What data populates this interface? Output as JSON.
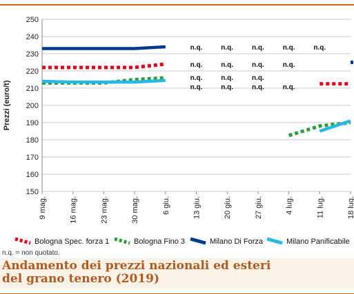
{
  "chart_data": {
    "type": "line",
    "ylabel": "Prezzi (euro/t)",
    "ylim": [
      150,
      250
    ],
    "yticks": [
      150,
      160,
      170,
      180,
      190,
      200,
      210,
      220,
      230,
      240,
      250
    ],
    "categories": [
      "9 mag.",
      "16 mag.",
      "23 mag.",
      "30 mag.",
      "6 giu.",
      "13 giu.",
      "20 giu.",
      "27 giu.",
      "4 lug.",
      "11 lug.",
      "18 lug."
    ],
    "grid": "horizontal",
    "legend_position": "bottom",
    "series": [
      {
        "name": "Bologna Spec. forza 1",
        "color": "#e2001a",
        "style": "dotted",
        "values": [
          222,
          222,
          222,
          222,
          224,
          null,
          null,
          null,
          null,
          212.5,
          212.5
        ]
      },
      {
        "name": "Bologna Fino 3",
        "color": "#2e9e3a",
        "style": "dotted",
        "values": [
          213,
          213,
          213,
          215,
          216,
          null,
          null,
          null,
          182.5,
          188,
          190
        ]
      },
      {
        "name": "Milano Di Forza",
        "color": "#003a8c",
        "style": "solid",
        "values": [
          233,
          233,
          233,
          233,
          234,
          null,
          null,
          null,
          null,
          null,
          225
        ]
      },
      {
        "name": "Milano Panificabile",
        "color": "#27b8e6",
        "style": "solid",
        "values": [
          214,
          213.5,
          213.5,
          213.5,
          214.5,
          null,
          null,
          null,
          null,
          185,
          191
        ]
      }
    ],
    "annotations": {
      "label": "n.q.",
      "items": [
        {
          "x": "13 giu.",
          "y": 234
        },
        {
          "x": "20 giu.",
          "y": 234
        },
        {
          "x": "27 giu.",
          "y": 234
        },
        {
          "x": "4 lug.",
          "y": 234
        },
        {
          "x": "11 lug.",
          "y": 234
        },
        {
          "x": "13 giu.",
          "y": 224
        },
        {
          "x": "20 giu.",
          "y": 224
        },
        {
          "x": "27 giu.",
          "y": 224
        },
        {
          "x": "4 lug.",
          "y": 224
        },
        {
          "x": "13 giu.",
          "y": 216.5
        },
        {
          "x": "20 giu.",
          "y": 216.5
        },
        {
          "x": "27 giu.",
          "y": 216.5
        },
        {
          "x": "13 giu.",
          "y": 211
        },
        {
          "x": "20 giu.",
          "y": 211
        },
        {
          "x": "27 giu.",
          "y": 211
        },
        {
          "x": "4 lug.",
          "y": 211
        }
      ]
    }
  },
  "footnote": "n.q. = non quotato.",
  "caption": {
    "line1": "Andamento dei prezzi nazionali ed esteri",
    "line2": "del grano tenero (2019)"
  },
  "colors": {
    "accent": "#c0662a",
    "caption_text": "#b05a1f"
  }
}
